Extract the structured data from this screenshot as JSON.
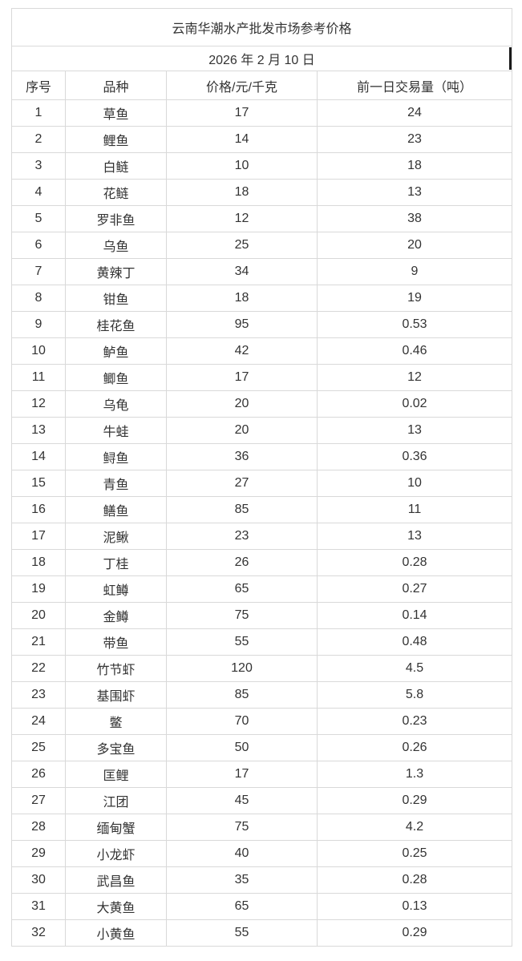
{
  "table": {
    "title": "云南华潮水产批发市场参考价格",
    "date": "2026 年 2 月 10 日",
    "headers": {
      "no": "序号",
      "variety": "品种",
      "price": "价格/元/千克",
      "volume": "前一日交易量（吨）"
    },
    "rows": [
      {
        "no": "1",
        "variety": "草鱼",
        "price": "17",
        "volume": "24"
      },
      {
        "no": "2",
        "variety": "鲤鱼",
        "price": "14",
        "volume": "23"
      },
      {
        "no": "3",
        "variety": "白鲢",
        "price": "10",
        "volume": "18"
      },
      {
        "no": "4",
        "variety": "花鲢",
        "price": "18",
        "volume": "13"
      },
      {
        "no": "5",
        "variety": "罗非鱼",
        "price": "12",
        "volume": "38"
      },
      {
        "no": "6",
        "variety": "乌鱼",
        "price": "25",
        "volume": "20"
      },
      {
        "no": "7",
        "variety": "黄辣丁",
        "price": "34",
        "volume": "9"
      },
      {
        "no": "8",
        "variety": "钳鱼",
        "price": "18",
        "volume": "19"
      },
      {
        "no": "9",
        "variety": "桂花鱼",
        "price": "95",
        "volume": "0.53"
      },
      {
        "no": "10",
        "variety": "鲈鱼",
        "price": "42",
        "volume": "0.46"
      },
      {
        "no": "11",
        "variety": "鲫鱼",
        "price": "17",
        "volume": "12"
      },
      {
        "no": "12",
        "variety": "乌龟",
        "price": "20",
        "volume": "0.02"
      },
      {
        "no": "13",
        "variety": "牛蛙",
        "price": "20",
        "volume": "13"
      },
      {
        "no": "14",
        "variety": "鲟鱼",
        "price": "36",
        "volume": "0.36"
      },
      {
        "no": "15",
        "variety": "青鱼",
        "price": "27",
        "volume": "10"
      },
      {
        "no": "16",
        "variety": "鳝鱼",
        "price": "85",
        "volume": "11"
      },
      {
        "no": "17",
        "variety": "泥鳅",
        "price": "23",
        "volume": "13"
      },
      {
        "no": "18",
        "variety": "丁桂",
        "price": "26",
        "volume": "0.28"
      },
      {
        "no": "19",
        "variety": "虹鳟",
        "price": "65",
        "volume": "0.27"
      },
      {
        "no": "20",
        "variety": "金鳟",
        "price": "75",
        "volume": "0.14"
      },
      {
        "no": "21",
        "variety": "带鱼",
        "price": "55",
        "volume": "0.48"
      },
      {
        "no": "22",
        "variety": "竹节虾",
        "price": "120",
        "volume": "4.5"
      },
      {
        "no": "23",
        "variety": "基围虾",
        "price": "85",
        "volume": "5.8"
      },
      {
        "no": "24",
        "variety": "鳖",
        "price": "70",
        "volume": "0.23"
      },
      {
        "no": "25",
        "variety": "多宝鱼",
        "price": "50",
        "volume": "0.26"
      },
      {
        "no": "26",
        "variety": "匡鲤",
        "price": "17",
        "volume": "1.3"
      },
      {
        "no": "27",
        "variety": "江团",
        "price": "45",
        "volume": "0.29"
      },
      {
        "no": "28",
        "variety": "缅甸蟹",
        "price": "75",
        "volume": "4.2"
      },
      {
        "no": "29",
        "variety": "小龙虾",
        "price": "40",
        "volume": "0.25"
      },
      {
        "no": "30",
        "variety": "武昌鱼",
        "price": "35",
        "volume": "0.28"
      },
      {
        "no": "31",
        "variety": "大黄鱼",
        "price": "65",
        "volume": "0.13"
      },
      {
        "no": "32",
        "variety": "小黄鱼",
        "price": "55",
        "volume": "0.29"
      }
    ]
  },
  "colors": {
    "border": "#d9d9d9",
    "text": "#333333",
    "cursor": "#1a1a1a",
    "background": "#ffffff"
  }
}
